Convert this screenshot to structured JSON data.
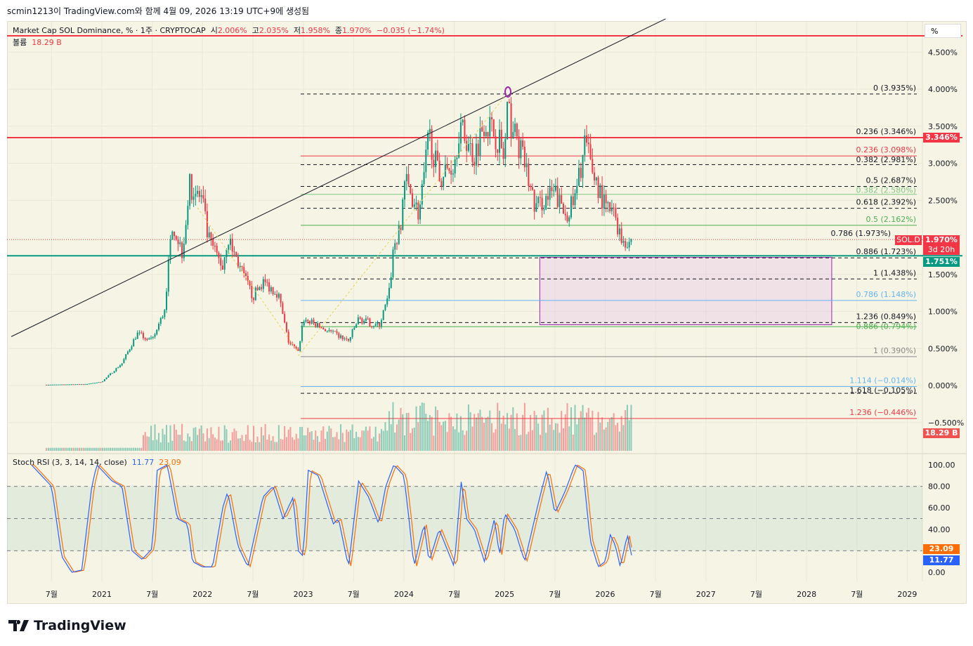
{
  "credit": "scmin1213이 TradingView.com와 함께 4월 09, 2026 13:19 UTC+9에 생성됨",
  "legend": {
    "symbol": "Market Cap SOL Dominance, % · 1주 · CRYPTOCAP",
    "o_label": "시",
    "o": "2.006%",
    "h_label": "고",
    "h": "2.035%",
    "l_label": "저",
    "l": "1.958%",
    "c_label": "종",
    "c": "1.970%",
    "chg": "−0.035 (−1.74%)",
    "vol_label": "볼륨",
    "vol": "18.29 B"
  },
  "scale_button": "%",
  "price_tags": {
    "last": "1.970%",
    "symbol": "SOL.D",
    "countdown": "3d 20h",
    "red_line": "3.346%",
    "teal_line": "1.751%",
    "volume": "18.29 B"
  },
  "stoch": {
    "title": "Stoch RSI (3, 3, 14, 14, close)",
    "k": "11.77",
    "d": "23.09",
    "axis": [
      "100.00",
      "80.00",
      "60.00",
      "40.00",
      "0.00"
    ]
  },
  "brand": "TradingView",
  "colors": {
    "up": "#089981",
    "down": "#f23645",
    "k": "#2962ff",
    "d": "#ff6d00",
    "bg": "#f6f4e4"
  },
  "chart_data": {
    "type": "candlestick",
    "title": "Market Cap SOL Dominance, % · 1주 · CRYPTOCAP",
    "y_ticks": [
      "4.500%",
      "4.000%",
      "3.500%",
      "3.000%",
      "2.500%",
      "1.500%",
      "1.000%",
      "0.500%",
      "0.000%",
      "−0.500%"
    ],
    "y_tick_values": [
      4.5,
      4.0,
      3.5,
      3.0,
      2.5,
      1.5,
      1.0,
      0.5,
      0.0,
      -0.5
    ],
    "ylim": [
      -0.9,
      4.9
    ],
    "x_ticks": [
      {
        "t": 2020.5,
        "label": "7월"
      },
      {
        "t": 2021,
        "label": "2021"
      },
      {
        "t": 2021.5,
        "label": "7월"
      },
      {
        "t": 2022,
        "label": "2022"
      },
      {
        "t": 2022.5,
        "label": "7월"
      },
      {
        "t": 2023,
        "label": "2023"
      },
      {
        "t": 2023.5,
        "label": "7월"
      },
      {
        "t": 2024,
        "label": "2024"
      },
      {
        "t": 2024.5,
        "label": "7월"
      },
      {
        "t": 2025,
        "label": "2025"
      },
      {
        "t": 2025.5,
        "label": "7월"
      },
      {
        "t": 2026,
        "label": "2026"
      },
      {
        "t": 2026.5,
        "label": "7월"
      },
      {
        "t": 2027,
        "label": "2027"
      },
      {
        "t": 2027.5,
        "label": "7월"
      },
      {
        "t": 2028,
        "label": "2028"
      },
      {
        "t": 2028.5,
        "label": "7월"
      },
      {
        "t": 2029,
        "label": "2029"
      }
    ],
    "xlim": [
      2020.1,
      2029.2
    ],
    "close_path": [
      [
        2020.45,
        0.01
      ],
      [
        2020.85,
        0.02
      ],
      [
        2021.0,
        0.05
      ],
      [
        2021.2,
        0.3
      ],
      [
        2021.35,
        0.7
      ],
      [
        2021.5,
        0.6
      ],
      [
        2021.62,
        1.0
      ],
      [
        2021.7,
        2.2
      ],
      [
        2021.8,
        1.8
      ],
      [
        2021.87,
        2.7
      ],
      [
        2022.0,
        2.5
      ],
      [
        2022.05,
        2.0
      ],
      [
        2022.2,
        1.6
      ],
      [
        2022.25,
        2.0
      ],
      [
        2022.4,
        1.5
      ],
      [
        2022.5,
        1.2
      ],
      [
        2022.6,
        1.4
      ],
      [
        2022.75,
        1.25
      ],
      [
        2022.85,
        0.6
      ],
      [
        2022.95,
        0.45
      ],
      [
        2023.0,
        0.9
      ],
      [
        2023.3,
        0.7
      ],
      [
        2023.45,
        0.6
      ],
      [
        2023.55,
        0.9
      ],
      [
        2023.75,
        0.8
      ],
      [
        2023.85,
        1.2
      ],
      [
        2023.9,
        1.9
      ],
      [
        2023.97,
        2.1
      ],
      [
        2024.0,
        2.8
      ],
      [
        2024.1,
        2.5
      ],
      [
        2024.15,
        2.3
      ],
      [
        2024.2,
        2.8
      ],
      [
        2024.25,
        3.4
      ],
      [
        2024.35,
        2.8
      ],
      [
        2024.5,
        3.0
      ],
      [
        2024.55,
        3.5
      ],
      [
        2024.7,
        3.1
      ],
      [
        2024.8,
        3.6
      ],
      [
        2024.95,
        3.3
      ],
      [
        2025.0,
        3.0
      ],
      [
        2025.02,
        3.7
      ],
      [
        2025.1,
        3.4
      ],
      [
        2025.2,
        3.0
      ],
      [
        2025.3,
        2.4
      ],
      [
        2025.5,
        2.6
      ],
      [
        2025.6,
        2.3
      ],
      [
        2025.7,
        2.5
      ],
      [
        2025.75,
        2.9
      ],
      [
        2025.8,
        3.3
      ],
      [
        2025.85,
        3.0
      ],
      [
        2025.95,
        2.6
      ],
      [
        2026.0,
        2.4
      ],
      [
        2026.1,
        2.3
      ],
      [
        2026.15,
        2.0
      ],
      [
        2026.2,
        1.95
      ],
      [
        2026.27,
        1.97
      ]
    ],
    "fib_levels": [
      {
        "value": 3.935,
        "label": "0 (3.935%)",
        "color": "#131722",
        "style": "dash"
      },
      {
        "value": 3.346,
        "label": "0.236 (3.346%)",
        "color": "#131722",
        "style": "none"
      },
      {
        "value": 3.098,
        "label": "0.236 (3.098%)",
        "color": "#f23645",
        "style": "solid"
      },
      {
        "value": 2.981,
        "label": "0.382 (2.981%)",
        "color": "#131722",
        "style": "dash"
      },
      {
        "value": 2.687,
        "label": "0.5 (2.687%)",
        "color": "#131722",
        "style": "dash"
      },
      {
        "value": 2.58,
        "label": "0.382 (2.580%)",
        "color": "#81c784",
        "style": "solid"
      },
      {
        "value": 2.392,
        "label": "0.618 (2.392%)",
        "color": "#131722",
        "style": "dash"
      },
      {
        "value": 2.162,
        "label": "0.5 (2.162%)",
        "color": "#4caf50",
        "style": "solid"
      },
      {
        "value": 1.973,
        "label": "0.786 (1.973%)",
        "color": "#131722",
        "style": "none"
      },
      {
        "value": 1.723,
        "label": "0.886 (1.723%)",
        "color": "#131722",
        "style": "dash"
      },
      {
        "value": 1.438,
        "label": "1 (1.438%)",
        "color": "#131722",
        "style": "dash"
      },
      {
        "value": 1.148,
        "label": "0.786 (1.148%)",
        "color": "#64b5f6",
        "style": "solid"
      },
      {
        "value": 0.849,
        "label": "1.236 (0.849%)",
        "color": "#131722",
        "style": "dash"
      },
      {
        "value": 0.794,
        "label": "0.886 (0.794%)",
        "color": "#4caf50",
        "style": "solid"
      },
      {
        "value": 0.39,
        "label": "1 (0.390%)",
        "color": "#888888",
        "style": "solid"
      },
      {
        "value": -0.014,
        "label": "1.114 (−0.014%)",
        "color": "#64b5f6",
        "style": "solid"
      },
      {
        "value": -0.105,
        "label": "1.618 (−0.105%)",
        "color": "#131722",
        "style": "dash"
      },
      {
        "value": -0.446,
        "label": "1.236 (−0.446%)",
        "color": "#f23645",
        "style": "solid"
      }
    ],
    "horizontal_lines": [
      {
        "value": 4.72,
        "color": "#f23645"
      },
      {
        "value": 3.346,
        "color": "#f23645"
      },
      {
        "value": 1.751,
        "color": "#089981"
      }
    ],
    "trendline": [
      [
        2020.1,
        0.66
      ],
      [
        2026.6,
        4.95
      ]
    ],
    "box": {
      "t0": 2025.35,
      "t1": 2028.25,
      "v0": 1.73,
      "v1": 0.82
    },
    "stoch_path": [
      [
        2020.3,
        100
      ],
      [
        2020.5,
        80
      ],
      [
        2020.6,
        15
      ],
      [
        2020.7,
        0
      ],
      [
        2020.8,
        2
      ],
      [
        2020.9,
        80
      ],
      [
        2020.95,
        100
      ],
      [
        2021.1,
        85
      ],
      [
        2021.2,
        80
      ],
      [
        2021.3,
        20
      ],
      [
        2021.4,
        12
      ],
      [
        2021.5,
        22
      ],
      [
        2021.55,
        95
      ],
      [
        2021.65,
        100
      ],
      [
        2021.75,
        50
      ],
      [
        2021.85,
        45
      ],
      [
        2021.9,
        10
      ],
      [
        2022.0,
        5
      ],
      [
        2022.1,
        5
      ],
      [
        2022.2,
        60
      ],
      [
        2022.25,
        75
      ],
      [
        2022.35,
        25
      ],
      [
        2022.45,
        5
      ],
      [
        2022.6,
        70
      ],
      [
        2022.7,
        80
      ],
      [
        2022.8,
        50
      ],
      [
        2022.9,
        70
      ],
      [
        2022.95,
        20
      ],
      [
        2023.0,
        15
      ],
      [
        2023.05,
        95
      ],
      [
        2023.15,
        90
      ],
      [
        2023.3,
        45
      ],
      [
        2023.35,
        50
      ],
      [
        2023.45,
        5
      ],
      [
        2023.55,
        85
      ],
      [
        2023.65,
        70
      ],
      [
        2023.75,
        45
      ],
      [
        2023.82,
        80
      ],
      [
        2023.9,
        100
      ],
      [
        2024.0,
        90
      ],
      [
        2024.05,
        50
      ],
      [
        2024.1,
        5
      ],
      [
        2024.2,
        45
      ],
      [
        2024.25,
        10
      ],
      [
        2024.35,
        40
      ],
      [
        2024.5,
        5
      ],
      [
        2024.57,
        85
      ],
      [
        2024.62,
        50
      ],
      [
        2024.7,
        40
      ],
      [
        2024.8,
        10
      ],
      [
        2024.9,
        50
      ],
      [
        2024.95,
        15
      ],
      [
        2025.0,
        55
      ],
      [
        2025.1,
        40
      ],
      [
        2025.2,
        10
      ],
      [
        2025.35,
        70
      ],
      [
        2025.42,
        95
      ],
      [
        2025.5,
        55
      ],
      [
        2025.6,
        75
      ],
      [
        2025.7,
        100
      ],
      [
        2025.78,
        95
      ],
      [
        2025.85,
        30
      ],
      [
        2025.93,
        5
      ],
      [
        2026.0,
        10
      ],
      [
        2026.05,
        35
      ],
      [
        2026.1,
        25
      ],
      [
        2026.15,
        5
      ],
      [
        2026.22,
        35
      ],
      [
        2026.27,
        12
      ]
    ]
  }
}
